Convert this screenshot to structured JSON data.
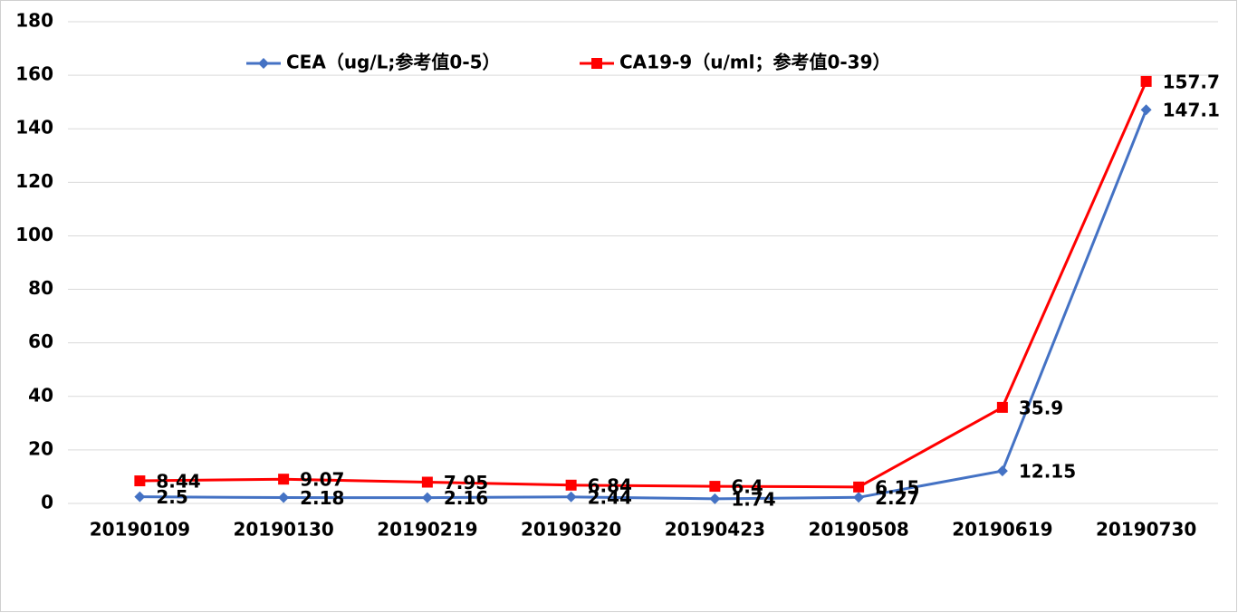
{
  "chart_data": {
    "type": "line",
    "categories": [
      "20190109",
      "20190130",
      "20190219",
      "20190320",
      "20190423",
      "20190508",
      "20190619",
      "20190730"
    ],
    "series": [
      {
        "name": "CEA（ug/L;参考值0-5）",
        "color": "#4472c4",
        "marker": "diamond",
        "values": [
          2.5,
          2.18,
          2.16,
          2.44,
          1.74,
          2.27,
          12.15,
          147.1
        ]
      },
      {
        "name": "CA19-9（u/ml；参考值0-39）",
        "color": "#ff0000",
        "marker": "square",
        "values": [
          8.44,
          9.07,
          7.95,
          6.84,
          6.4,
          6.15,
          35.9,
          157.7
        ]
      }
    ],
    "ylim": [
      0,
      180
    ],
    "yticks": [
      0,
      20,
      40,
      60,
      80,
      100,
      120,
      140,
      160,
      180
    ],
    "grid": true,
    "legend": "top"
  }
}
